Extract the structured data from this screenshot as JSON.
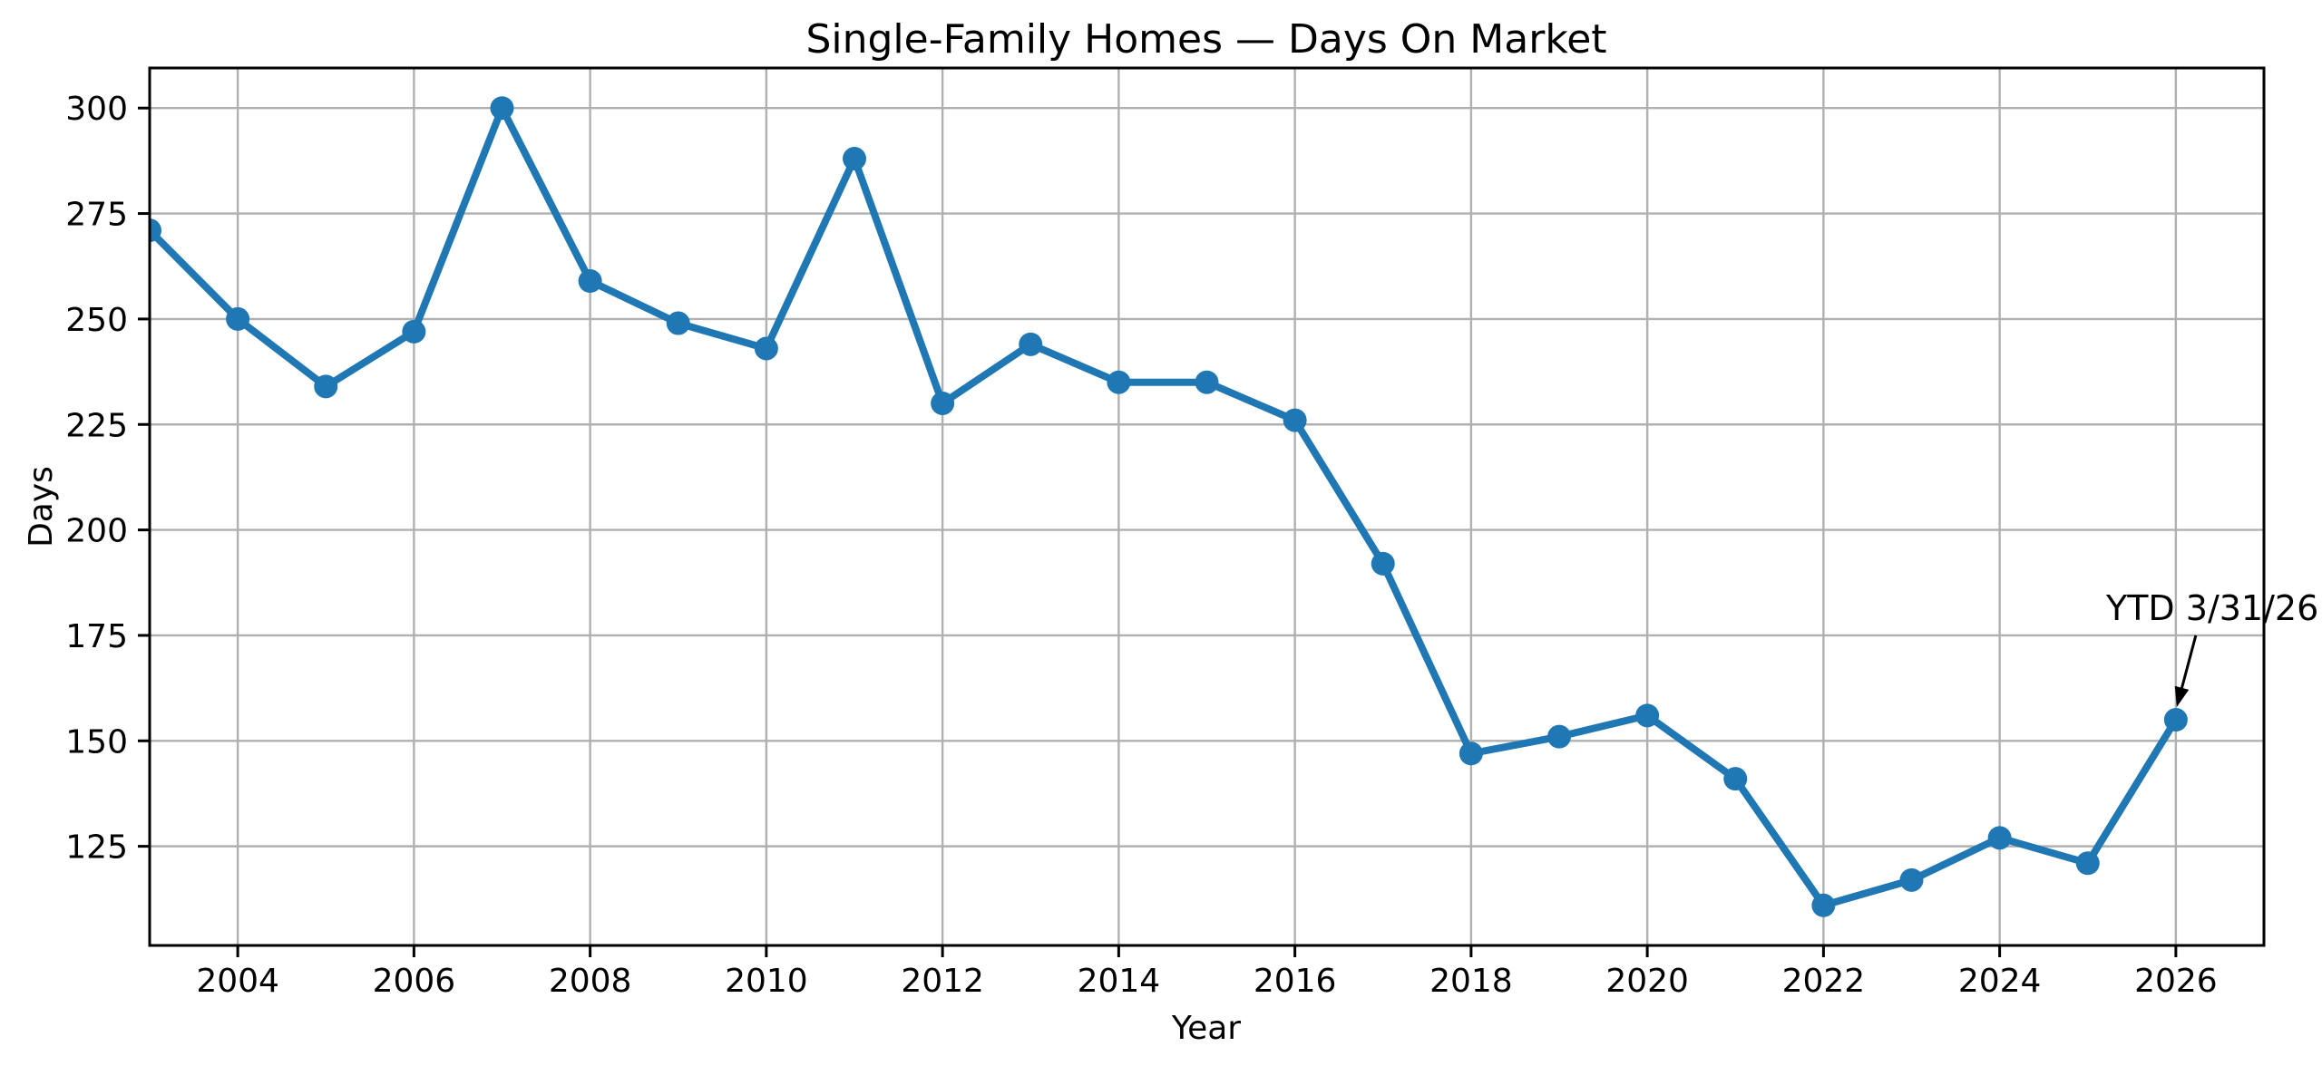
{
  "figure": {
    "background": "#ffffff",
    "text_color": "#000000"
  },
  "chart_data": {
    "type": "line",
    "title": "Single-Family Homes — Days On Market",
    "xlabel": "Year",
    "ylabel": "Days",
    "x": [
      2003,
      2004,
      2005,
      2006,
      2007,
      2008,
      2009,
      2010,
      2011,
      2012,
      2013,
      2014,
      2015,
      2016,
      2017,
      2018,
      2019,
      2020,
      2021,
      2022,
      2023,
      2024,
      2025,
      2026
    ],
    "values": [
      271,
      250,
      234,
      247,
      300,
      259,
      249,
      243,
      288,
      230,
      244,
      235,
      235,
      226,
      192,
      147,
      151,
      156,
      141,
      111,
      117,
      127,
      121,
      155
    ],
    "series_name": "Days On Market",
    "xlim": [
      2003,
      2027
    ],
    "ylim": [
      101.5,
      309.5
    ],
    "xticks": [
      2004,
      2006,
      2008,
      2010,
      2012,
      2014,
      2016,
      2018,
      2020,
      2022,
      2024,
      2026
    ],
    "yticks": [
      125,
      150,
      175,
      200,
      225,
      250,
      275,
      300
    ],
    "grid": true,
    "legend": "none",
    "line_color": "#1f77b4",
    "marker_color": "#1f77b4",
    "grid_color": "#b0b0b0",
    "spine_color": "#000000",
    "annotation": {
      "text": "YTD 3/31/26",
      "target_x": 2026,
      "target_y": 155
    }
  }
}
